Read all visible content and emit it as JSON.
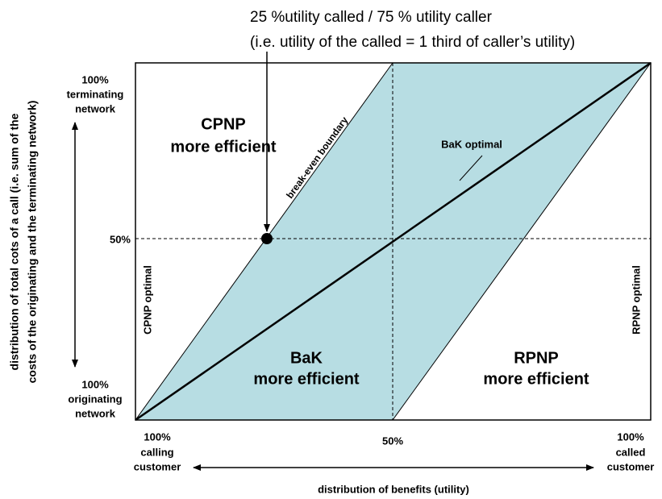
{
  "annotation": {
    "lines": [
      "25 %utility called / 75 % utility caller",
      "(i.e. utility of the called = 1 third of caller’s utility)"
    ]
  },
  "regions": {
    "cpnp": [
      "CPNP",
      "more efficient"
    ],
    "bak": [
      "BaK",
      "more efficient"
    ],
    "rpnp": [
      "RPNP",
      "more efficient"
    ]
  },
  "labels": {
    "break_even": "break-even boundary",
    "bak_optimal": "BaK optimal",
    "cpnp_optimal": "CPNP optimal",
    "rpnp_optimal": "RPNP optimal",
    "y_mid": "50%",
    "x_mid": "50%"
  },
  "y_axis": {
    "top": [
      "100%",
      "terminating",
      "network"
    ],
    "bottom": [
      "100%",
      "originating",
      "network"
    ],
    "title": [
      "distribution of total cots of a call (i.e. sum of the",
      "costs of the originating and the terminating network)"
    ]
  },
  "x_axis": {
    "left": [
      "100%",
      "calling",
      "customer"
    ],
    "right": [
      "100%",
      "called",
      "customer"
    ],
    "title": "distribution of benefits (utility)"
  }
}
